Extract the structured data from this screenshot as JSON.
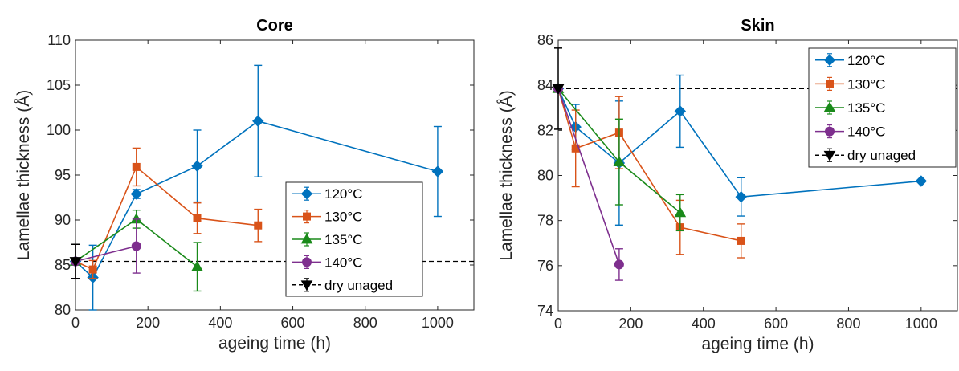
{
  "chart_data": [
    {
      "type": "line",
      "title": "Core",
      "xlabel": "ageing time (h)",
      "ylabel": "Lamellae thickness (Å)",
      "xlim": [
        0,
        1100
      ],
      "ylim": [
        80,
        110
      ],
      "xticks": [
        0,
        200,
        400,
        600,
        800,
        1000
      ],
      "yticks": [
        80,
        85,
        90,
        95,
        100,
        105,
        110
      ],
      "grid": false,
      "legend_position": "center-right",
      "reference_line": {
        "name": "dry unaged",
        "y": 85.4,
        "x": 0,
        "err": 1.9,
        "color": "#000000"
      },
      "series": [
        {
          "name": "120°C",
          "color": "#0072BD",
          "marker": "diamond",
          "x": [
            0,
            48,
            168,
            336,
            504,
            1000
          ],
          "y": [
            85.4,
            83.6,
            92.9,
            96.0,
            101.0,
            95.4
          ],
          "err": [
            1.9,
            3.6,
            0.5,
            4.0,
            6.2,
            5.0
          ]
        },
        {
          "name": "130°C",
          "color": "#D95319",
          "marker": "square",
          "x": [
            0,
            48,
            168,
            336,
            504
          ],
          "y": [
            85.4,
            84.5,
            95.9,
            90.2,
            89.4
          ],
          "err": [
            1.9,
            1.0,
            2.1,
            1.7,
            1.8
          ]
        },
        {
          "name": "135°C",
          "color": "#1A8A1A",
          "marker": "triangle",
          "x": [
            0,
            168,
            336
          ],
          "y": [
            85.4,
            90.1,
            84.8
          ],
          "err": [
            1.9,
            1.0,
            2.7
          ]
        },
        {
          "name": "140°C",
          "color": "#7E2F8E",
          "marker": "circle",
          "x": [
            0,
            168
          ],
          "y": [
            85.4,
            87.1
          ],
          "err": [
            1.9,
            3.0
          ]
        }
      ]
    },
    {
      "type": "line",
      "title": "Skin",
      "xlabel": "ageing time (h)",
      "ylabel": "Lamellae thickness (Å)",
      "xlim": [
        0,
        1100
      ],
      "ylim": [
        74,
        86
      ],
      "xticks": [
        0,
        200,
        400,
        600,
        800,
        1000
      ],
      "yticks": [
        74,
        76,
        78,
        80,
        82,
        84,
        86
      ],
      "grid": false,
      "legend_position": "top-right",
      "reference_line": {
        "name": "dry unaged",
        "y": 83.85,
        "x": 0,
        "err": 1.8,
        "color": "#000000"
      },
      "series": [
        {
          "name": "120°C",
          "color": "#0072BD",
          "marker": "diamond",
          "x": [
            0,
            48,
            168,
            336,
            504,
            1000
          ],
          "y": [
            83.85,
            82.15,
            80.55,
            82.85,
            79.05,
            79.75
          ],
          "err": [
            0,
            1.0,
            2.75,
            1.6,
            0.85,
            0
          ]
        },
        {
          "name": "130°C",
          "color": "#D95319",
          "marker": "square",
          "x": [
            0,
            48,
            168,
            336,
            504
          ],
          "y": [
            83.85,
            81.2,
            81.9,
            77.7,
            77.1
          ],
          "err": [
            0,
            1.7,
            1.6,
            1.2,
            0.75
          ]
        },
        {
          "name": "135°C",
          "color": "#1A8A1A",
          "marker": "triangle",
          "x": [
            0,
            168,
            336
          ],
          "y": [
            83.85,
            80.6,
            78.35
          ],
          "err": [
            0,
            1.9,
            0.8
          ]
        },
        {
          "name": "140°C",
          "color": "#7E2F8E",
          "marker": "circle",
          "x": [
            0,
            168
          ],
          "y": [
            83.85,
            76.05
          ],
          "err": [
            0,
            0.7
          ]
        }
      ]
    }
  ]
}
